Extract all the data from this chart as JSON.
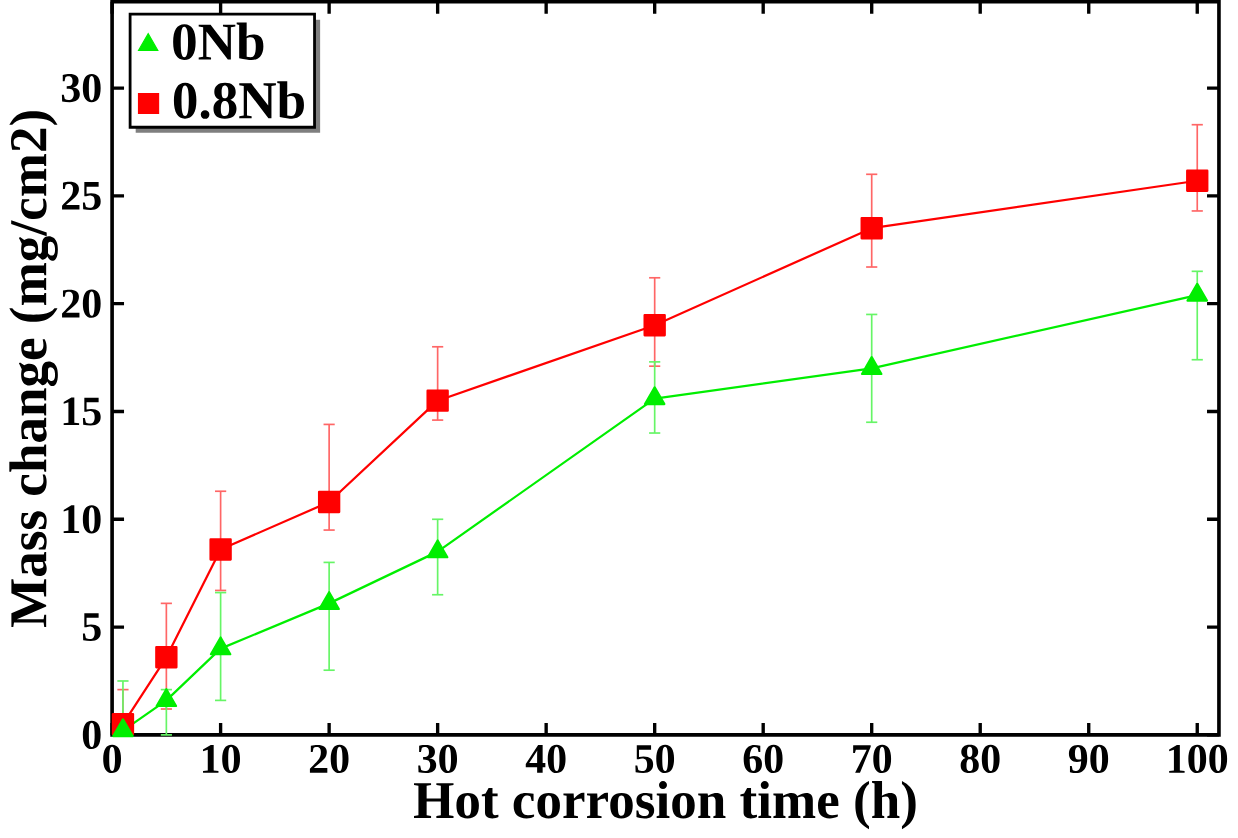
{
  "chart_data": {
    "type": "line",
    "xlabel": "Hot corrosion time (h)",
    "ylabel": "Mass change (mg/cm2)",
    "xlim": [
      0,
      102
    ],
    "ylim": [
      0,
      34
    ],
    "xticks": [
      0,
      10,
      20,
      30,
      40,
      50,
      60,
      70,
      80,
      90,
      100
    ],
    "yticks": [
      0,
      5,
      10,
      15,
      20,
      25,
      30
    ],
    "legend": "top left",
    "grid": false,
    "x": [
      1,
      5,
      10,
      20,
      30,
      50,
      70,
      100
    ],
    "series": [
      {
        "name": "0Nb",
        "color": "#00ee00",
        "marker": "triangle",
        "values": [
          0.2,
          1.6,
          4.0,
          6.1,
          8.5,
          15.6,
          17.0,
          20.4
        ],
        "errors": [
          [
            0,
            2.5
          ],
          [
            0,
            2.1
          ],
          [
            1.6,
            6.6
          ],
          [
            3.0,
            8.0
          ],
          [
            6.5,
            10.0
          ],
          [
            14.0,
            17.3
          ],
          [
            14.5,
            19.5
          ],
          [
            17.4,
            21.5
          ]
        ]
      },
      {
        "name": "0.8Nb",
        "color": "#ff0000",
        "marker": "square",
        "values": [
          0.5,
          3.6,
          8.6,
          10.8,
          15.5,
          19.0,
          23.5,
          25.7
        ],
        "errors": [
          [
            0.1,
            2.1
          ],
          [
            1.2,
            6.1
          ],
          [
            6.7,
            11.3
          ],
          [
            9.5,
            14.4
          ],
          [
            14.6,
            18.0
          ],
          [
            17.1,
            21.2
          ],
          [
            21.7,
            26.0
          ],
          [
            24.3,
            28.3
          ]
        ]
      }
    ]
  }
}
